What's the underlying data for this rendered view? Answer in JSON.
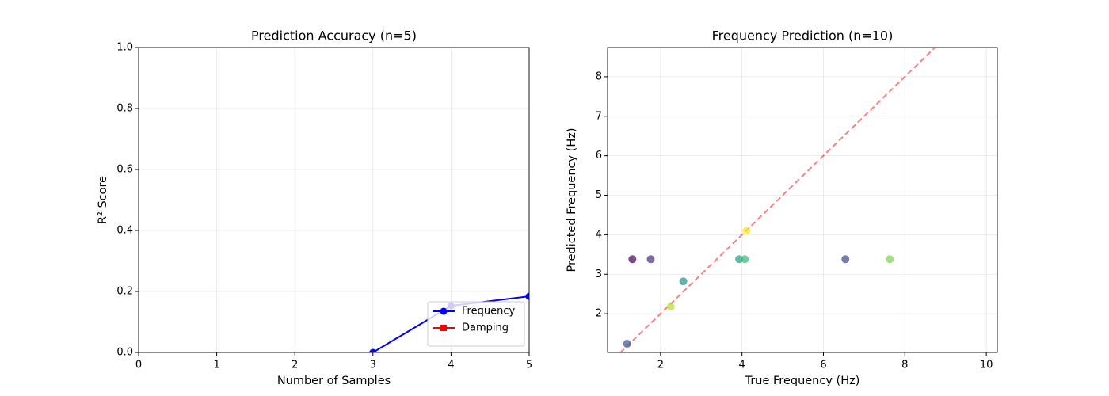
{
  "chart_data": [
    {
      "type": "line",
      "title": "Prediction Accuracy (n=5)",
      "xlabel": "Number of Samples",
      "ylabel": "R² Score",
      "x": [
        3,
        4,
        5
      ],
      "series": [
        {
          "name": "Frequency",
          "color": "#0000ff",
          "marker": "circle",
          "values": [
            0.0,
            0.153,
            0.184
          ]
        },
        {
          "name": "Damping",
          "color": "#ff0000",
          "marker": "square",
          "values": [
            null,
            null,
            null
          ]
        }
      ],
      "xlim": [
        0,
        5
      ],
      "xticks": [
        0,
        1,
        2,
        3,
        4,
        5
      ],
      "ylim": [
        0,
        1
      ],
      "yticks": [
        {
          "value": 0,
          "label": "0.0"
        },
        {
          "value": 0.2,
          "label": "0.2"
        },
        {
          "value": 0.4,
          "label": "0.4"
        },
        {
          "value": 0.6,
          "label": "0.6"
        },
        {
          "value": 0.8,
          "label": "0.8"
        },
        {
          "value": 1,
          "label": "1.0"
        }
      ],
      "grid": true,
      "legend": "lower right"
    },
    {
      "type": "scatter",
      "title": "Frequency Prediction (n=10)",
      "xlabel": "True Frequency (Hz)",
      "ylabel": "Predicted Frequency (Hz)",
      "x": [
        1.18,
        1.31,
        1.76,
        2.25,
        2.56,
        3.93,
        4.07,
        4.11,
        6.54,
        7.63
      ],
      "values": [
        1.24,
        3.38,
        3.38,
        2.18,
        2.82,
        3.38,
        3.38,
        4.1,
        3.38,
        3.38
      ],
      "colors": [
        "#3b528b",
        "#440154",
        "#482878",
        "#b5de2b",
        "#21918c",
        "#1f9e89",
        "#35b779",
        "#fde725",
        "#414487",
        "#7ad151"
      ],
      "xlim": [
        0.7,
        10.27
      ],
      "xticks": [
        2,
        4,
        6,
        8,
        10
      ],
      "ylim": [
        1.02,
        8.74
      ],
      "yticks": [
        2,
        3,
        4,
        5,
        6,
        7,
        8
      ],
      "grid": true,
      "identity_line": true
    }
  ]
}
